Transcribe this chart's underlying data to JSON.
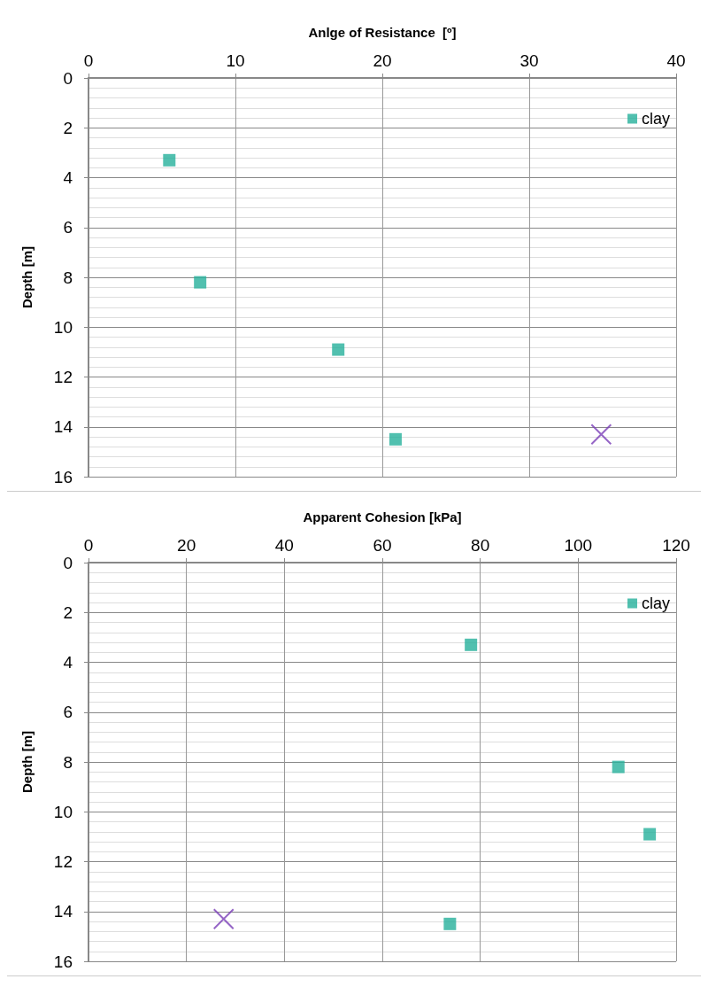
{
  "chart_data": [
    {
      "type": "scatter",
      "xlabel": "Anlge of Resistance  [º]",
      "ylabel": "Depth [m]",
      "xlim": [
        0,
        40
      ],
      "xticks": [
        0,
        10,
        20,
        30,
        40
      ],
      "ylim": [
        16,
        0
      ],
      "yticks": [
        0,
        2,
        4,
        6,
        8,
        10,
        12,
        14,
        16
      ],
      "grid": true,
      "legend": "top right",
      "series": [
        {
          "name": "clay",
          "color": "#26b09b",
          "marker": "square",
          "x": [
            5.5,
            7.6,
            17.0,
            20.9
          ],
          "values": [
            3.3,
            8.2,
            10.9,
            14.5
          ]
        },
        {
          "color": "#7b3fb8",
          "marker": "cross",
          "x": [
            34.9
          ],
          "values": [
            14.3
          ]
        }
      ]
    },
    {
      "type": "scatter",
      "xlabel": "Apparent Cohesion [kPa]",
      "ylabel": "Depth [m]",
      "xlim": [
        0,
        120
      ],
      "xticks": [
        0,
        20,
        40,
        60,
        80,
        100,
        120
      ],
      "ylim": [
        16,
        0
      ],
      "yticks": [
        0,
        2,
        4,
        6,
        8,
        10,
        12,
        14,
        16
      ],
      "grid": true,
      "legend": "top right",
      "series": [
        {
          "name": "clay",
          "color": "#26b09b",
          "marker": "square",
          "x": [
            78.1,
            108.2,
            114.6,
            73.8
          ],
          "values": [
            3.3,
            8.2,
            10.9,
            14.5
          ]
        },
        {
          "color": "#7b3fb8",
          "marker": "cross",
          "x": [
            27.6
          ],
          "values": [
            14.3
          ]
        }
      ]
    }
  ]
}
